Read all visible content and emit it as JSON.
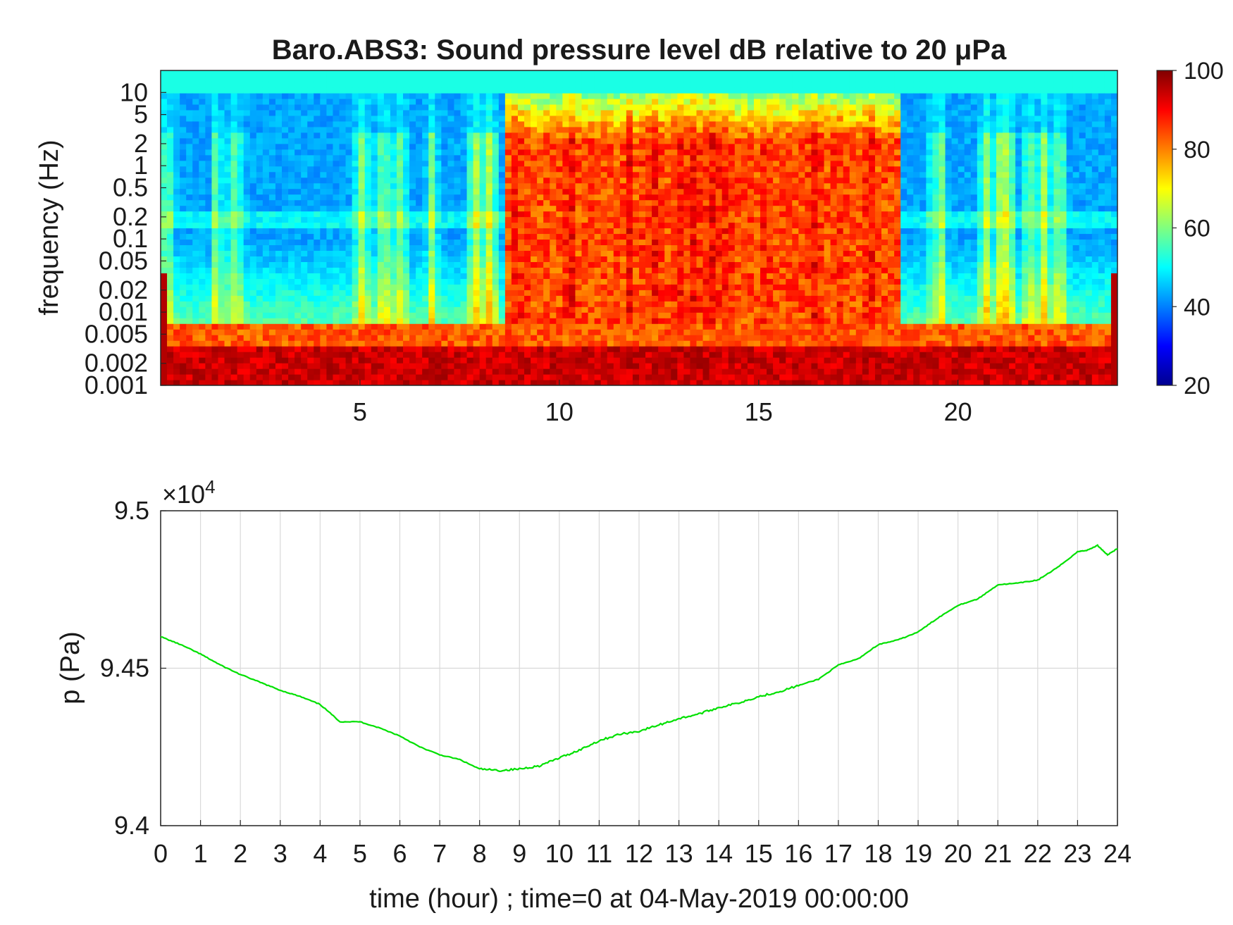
{
  "chart_data": [
    {
      "type": "heatmap",
      "title": "Baro.ABS3: Sound pressure level dB relative to 20 μPa",
      "xlabel": "",
      "ylabel": "frequency (Hz)",
      "x_ticks": [
        5,
        10,
        15,
        20
      ],
      "xlim": [
        0,
        24
      ],
      "y_scale": "log",
      "y_ticks": [
        "10",
        "5",
        "2",
        "1",
        "0.5",
        "0.2",
        "0.1",
        "0.05",
        "0.02",
        "0.01",
        "0.005",
        "0.002",
        "0.001"
      ],
      "y_tick_values": [
        10,
        5,
        2,
        1,
        0.5,
        0.2,
        0.1,
        0.05,
        0.02,
        0.01,
        0.005,
        0.002,
        0.001
      ],
      "ylim": [
        0.001,
        20
      ],
      "colormap": "jet",
      "colorbar": {
        "range": [
          20,
          100
        ],
        "ticks": [
          "100",
          "80",
          "60",
          "40",
          "20"
        ],
        "tick_values": [
          100,
          80,
          60,
          40,
          20
        ]
      },
      "active_period_hours": [
        8.7,
        18.5
      ],
      "description_levels_db": {
        "quiet_high_freq": 42,
        "active_mid_freq": 85,
        "low_freq_floor": 90
      }
    },
    {
      "type": "line",
      "xlabel": "time (hour) ; time=0 at 04-May-2019 00:00:00",
      "ylabel": "p (Pa)",
      "exponent_label": "×10",
      "exponent_power": "4",
      "xlim": [
        0,
        24
      ],
      "ylim": [
        94000,
        95000
      ],
      "x_ticks": [
        "0",
        "1",
        "2",
        "3",
        "4",
        "5",
        "6",
        "7",
        "8",
        "9",
        "10",
        "11",
        "12",
        "13",
        "14",
        "15",
        "16",
        "17",
        "18",
        "19",
        "20",
        "21",
        "22",
        "23",
        "24"
      ],
      "y_ticks": [
        "9.5",
        "9.45",
        "9.4"
      ],
      "y_tick_values": [
        95000,
        94500,
        94000
      ],
      "grid": true,
      "line_color": "#00e000",
      "x": [
        0,
        0.5,
        1,
        1.5,
        2,
        2.5,
        3,
        3.5,
        4,
        4.5,
        5,
        5.5,
        6,
        6.5,
        7,
        7.5,
        8,
        8.5,
        9,
        9.5,
        10,
        10.5,
        11,
        11.5,
        12,
        12.5,
        13,
        13.5,
        14,
        14.5,
        15,
        15.5,
        16,
        16.5,
        17,
        17.5,
        18,
        18.5,
        19,
        19.5,
        20,
        20.5,
        21,
        21.5,
        22,
        22.5,
        23,
        23.25,
        23.5,
        23.75,
        24
      ],
      "values": [
        94600,
        94575,
        94545,
        94510,
        94480,
        94455,
        94430,
        94410,
        94385,
        94330,
        94330,
        94310,
        94285,
        94250,
        94225,
        94210,
        94180,
        94175,
        94180,
        94190,
        94215,
        94240,
        94270,
        94290,
        94300,
        94320,
        94340,
        94355,
        94375,
        94390,
        94410,
        94425,
        94445,
        94465,
        94510,
        94530,
        94575,
        94590,
        94615,
        94660,
        94700,
        94720,
        94765,
        94770,
        94780,
        94820,
        94870,
        94875,
        94890,
        94860,
        94880
      ]
    }
  ]
}
